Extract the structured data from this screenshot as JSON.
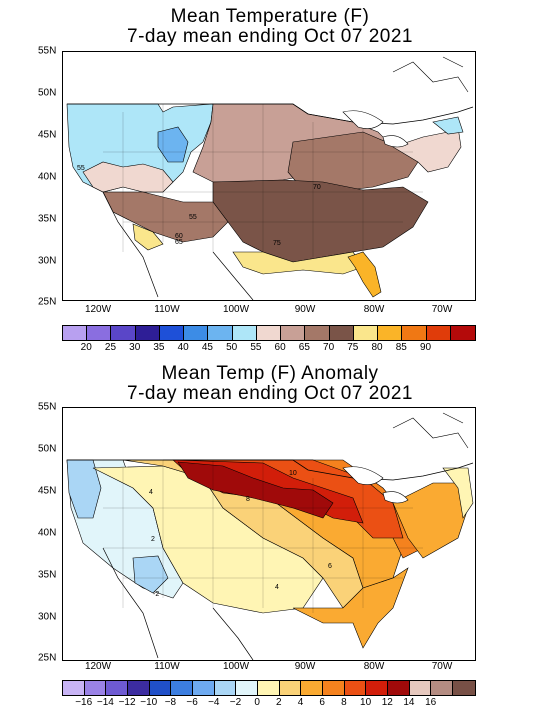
{
  "panels": [
    {
      "id": "temp",
      "title_line1": "Mean Temperature (F)",
      "title_line2": "7-day mean ending Oct 07 2021",
      "lat_labels": [
        "55N",
        "50N",
        "45N",
        "40N",
        "35N",
        "30N",
        "25N"
      ],
      "lon_labels": [
        "120W",
        "110W",
        "100W",
        "90W",
        "80W",
        "70W"
      ],
      "contour_labels": [
        "55",
        "70",
        "55",
        "60",
        "65",
        "75"
      ],
      "legend_labels": [
        "20",
        "25",
        "30",
        "35",
        "40",
        "45",
        "50",
        "55",
        "60",
        "65",
        "70",
        "75",
        "80",
        "85",
        "90"
      ],
      "legend_colors": [
        "#b8a0f0",
        "#8a6ee0",
        "#5a46c8",
        "#2e1e96",
        "#1e50d8",
        "#3c8ce6",
        "#6cb4f0",
        "#aee6f8",
        "#f0d8d0",
        "#c8a096",
        "#a47868",
        "#7a5448",
        "#fae68c",
        "#fab428",
        "#f07814",
        "#e03c0a",
        "#b40a0a"
      ]
    },
    {
      "id": "anom",
      "title_line1": "Mean Temp (F) Anomaly",
      "title_line2": "7-day mean ending Oct 07 2021",
      "lat_labels": [
        "55N",
        "50N",
        "45N",
        "40N",
        "35N",
        "30N",
        "25N"
      ],
      "lon_labels": [
        "120W",
        "110W",
        "100W",
        "90W",
        "80W",
        "70W"
      ],
      "contour_labels": [
        "10",
        "4",
        "8",
        "2",
        "6",
        "4",
        "-2"
      ],
      "legend_labels": [
        "−16",
        "−14",
        "−12",
        "−10",
        "−8",
        "−6",
        "−4",
        "−2",
        "0",
        "2",
        "4",
        "6",
        "8",
        "10",
        "12",
        "14",
        "16"
      ],
      "legend_colors": [
        "#c8b4f5",
        "#9a82e6",
        "#6e5ad2",
        "#3c2ca0",
        "#2050c8",
        "#3c7ee0",
        "#6eaaf0",
        "#aad6f5",
        "#e1f5fa",
        "#fff5b4",
        "#fad278",
        "#faaa32",
        "#f5821e",
        "#eb5014",
        "#d21e0a",
        "#a00a0a",
        "#e6c8be",
        "#b48c82",
        "#785046"
      ]
    }
  ]
}
